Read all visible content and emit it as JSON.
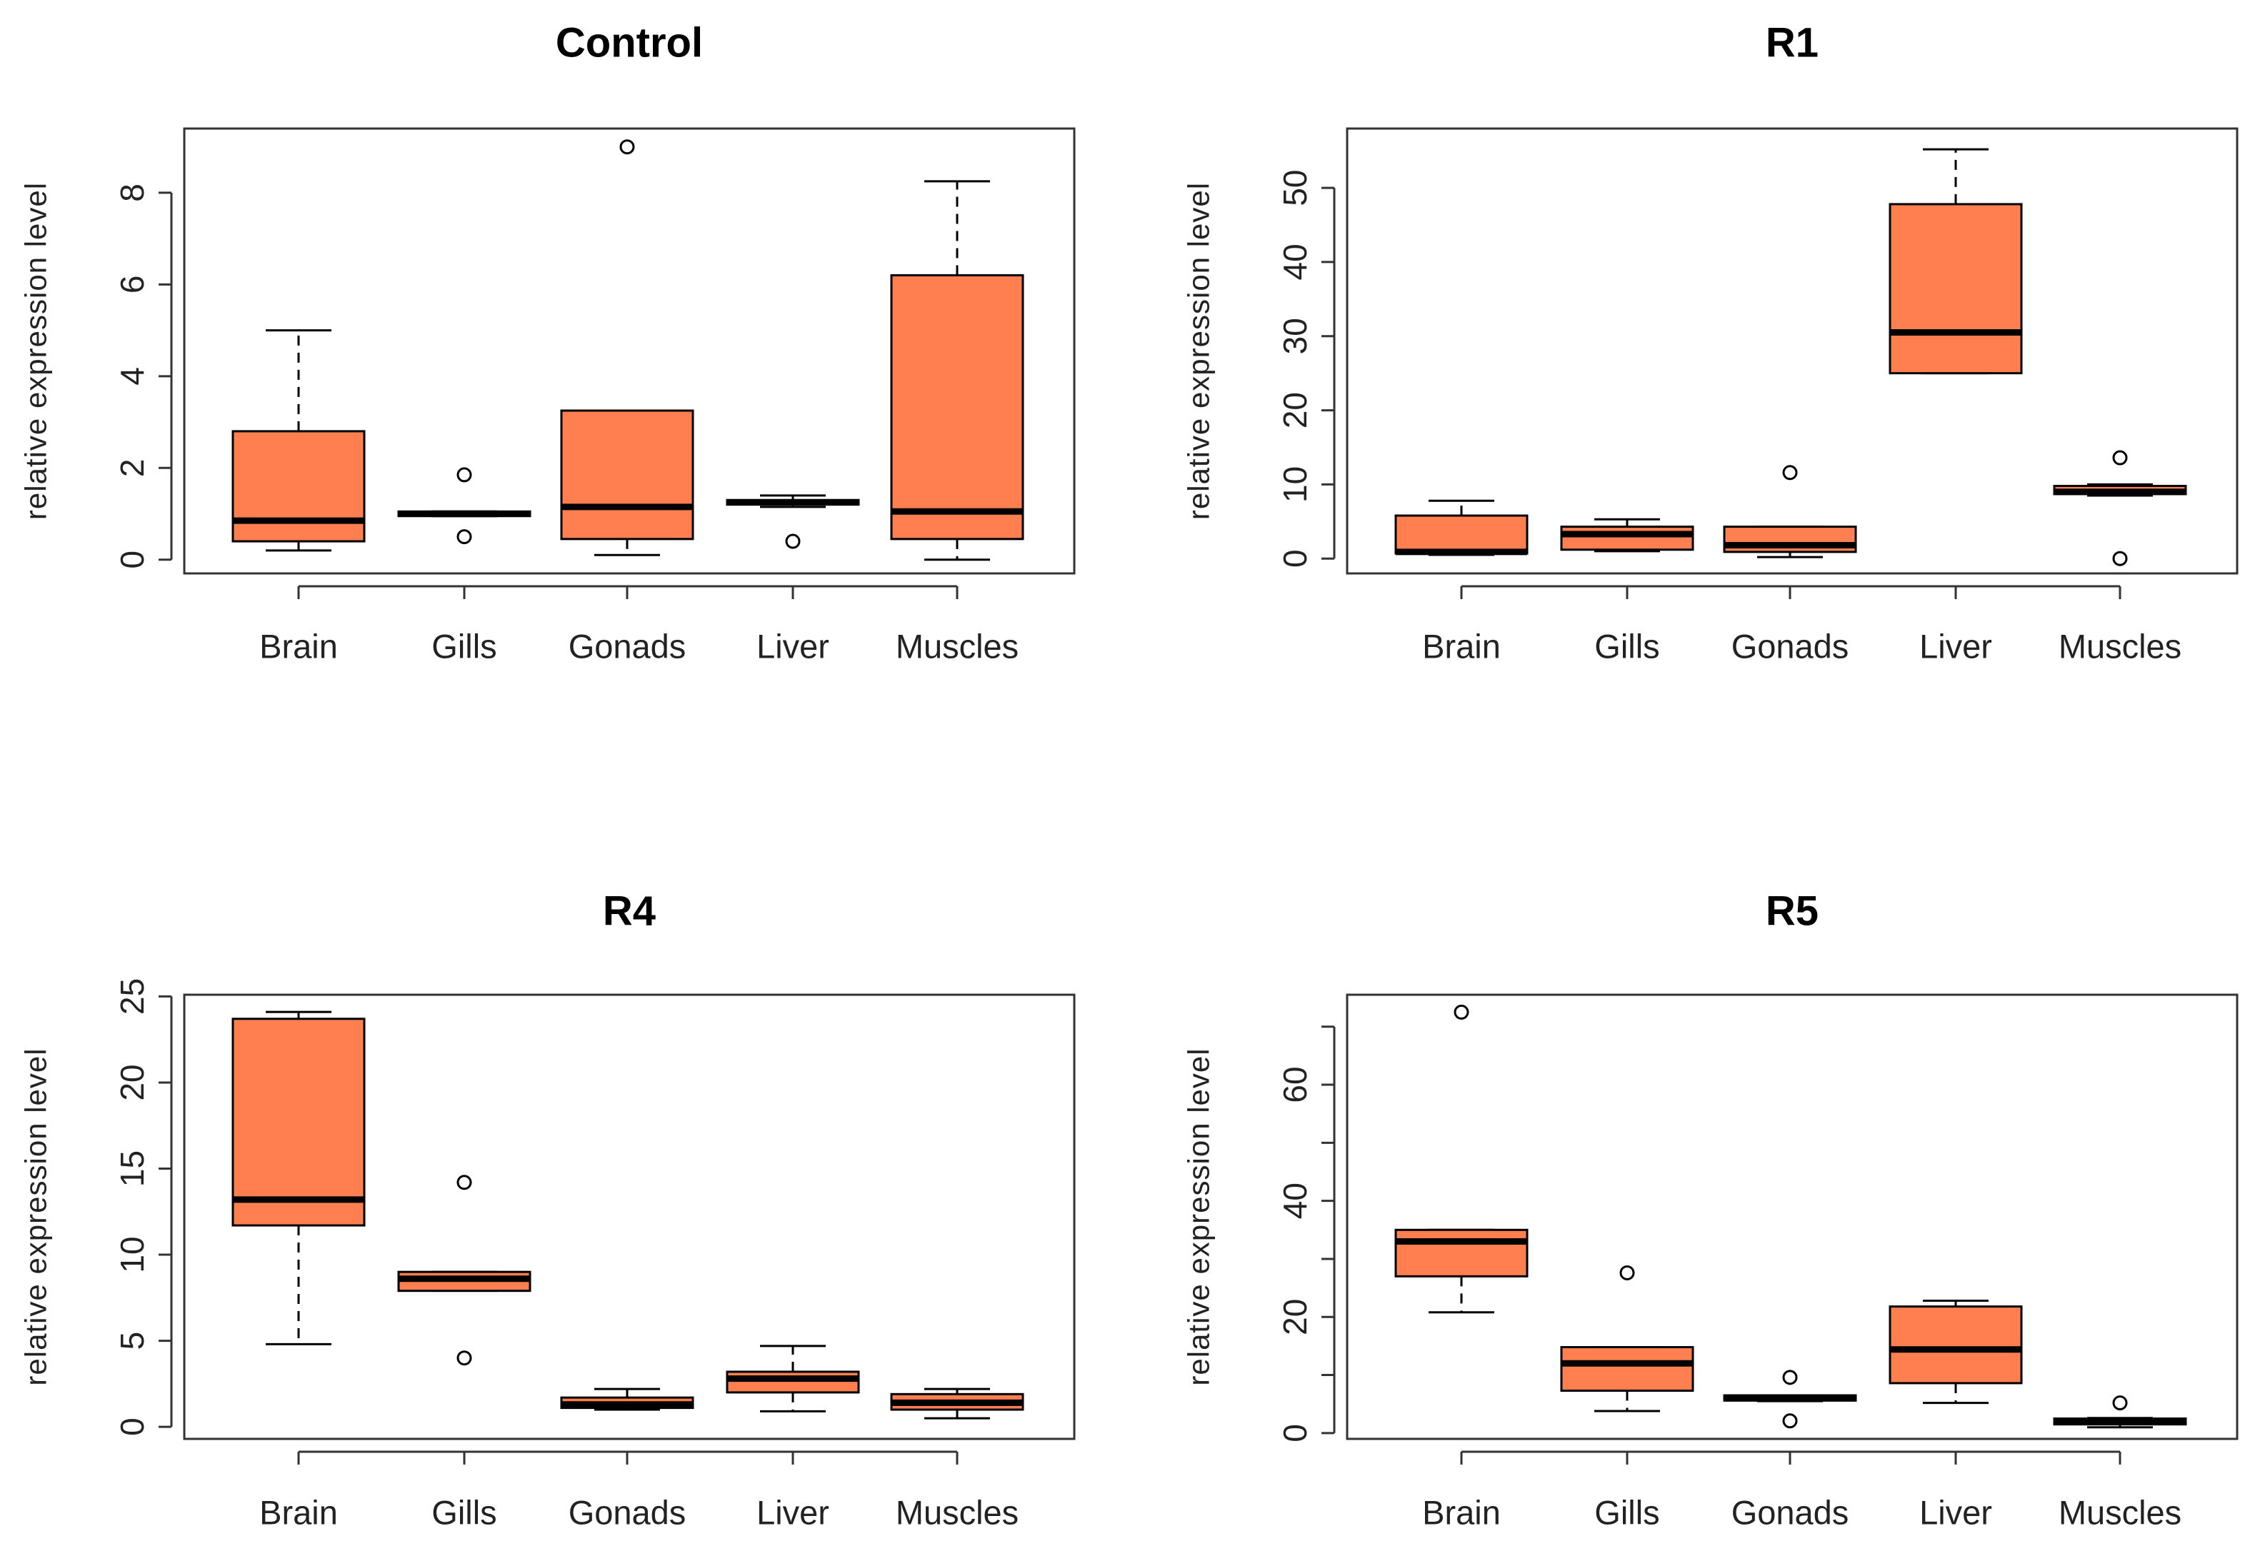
{
  "colors": {
    "box_fill": "#ff7f50",
    "stroke": "#000000",
    "frame": "#333333"
  },
  "chart_data": [
    {
      "type": "boxplot",
      "title": "Control",
      "ylabel": "relative expression level",
      "xlabel": "",
      "categories": [
        "Brain",
        "Gills",
        "Gonads",
        "Liver",
        "Muscles"
      ],
      "ylim": [
        -0.3,
        9.4
      ],
      "yticks": [
        0,
        2,
        4,
        6,
        8
      ],
      "boxes": [
        {
          "min": 0.2,
          "q1": 0.4,
          "median": 0.85,
          "q3": 2.8,
          "max": 5.0,
          "outliers": []
        },
        {
          "min": 0.95,
          "q1": 0.95,
          "median": 1.0,
          "q3": 1.05,
          "max": 1.05,
          "outliers": [
            1.85,
            0.5
          ]
        },
        {
          "min": 0.1,
          "q1": 0.45,
          "median": 1.15,
          "q3": 3.25,
          "max": 3.25,
          "outliers": [
            9.0
          ]
        },
        {
          "min": 1.15,
          "q1": 1.2,
          "median": 1.25,
          "q3": 1.3,
          "max": 1.4,
          "outliers": [
            0.4
          ]
        },
        {
          "min": 0.0,
          "q1": 0.45,
          "median": 1.05,
          "q3": 6.2,
          "max": 8.25,
          "outliers": []
        }
      ]
    },
    {
      "type": "boxplot",
      "title": "R1",
      "ylabel": "relative expression level",
      "xlabel": "",
      "categories": [
        "Brain",
        "Gills",
        "Gonads",
        "Liver",
        "Muscles"
      ],
      "ylim": [
        -2,
        58
      ],
      "yticks": [
        0,
        10,
        20,
        30,
        40,
        50
      ],
      "boxes": [
        {
          "min": 0.5,
          "q1": 0.7,
          "median": 0.9,
          "q3": 5.8,
          "max": 7.8,
          "outliers": []
        },
        {
          "min": 1.0,
          "q1": 1.2,
          "median": 3.3,
          "q3": 4.3,
          "max": 5.3,
          "outliers": []
        },
        {
          "min": 0.2,
          "q1": 0.9,
          "median": 1.8,
          "q3": 4.3,
          "max": 4.3,
          "outliers": [
            11.6
          ]
        },
        {
          "min": 25.0,
          "q1": 25.0,
          "median": 30.5,
          "q3": 47.8,
          "max": 55.2,
          "outliers": []
        },
        {
          "min": 8.5,
          "q1": 8.7,
          "median": 9.0,
          "q3": 9.8,
          "max": 10.0,
          "outliers": [
            13.6,
            0.0
          ]
        }
      ]
    },
    {
      "type": "boxplot",
      "title": "R4",
      "ylabel": "relative expression level",
      "xlabel": "",
      "categories": [
        "Brain",
        "Gills",
        "Gonads",
        "Liver",
        "Muscles"
      ],
      "ylim": [
        -0.7,
        25.1
      ],
      "yticks": [
        0,
        5,
        10,
        15,
        20,
        25
      ],
      "boxes": [
        {
          "min": 4.8,
          "q1": 11.7,
          "median": 13.2,
          "q3": 23.7,
          "max": 24.1,
          "outliers": []
        },
        {
          "min": 7.9,
          "q1": 7.9,
          "median": 8.6,
          "q3": 9.0,
          "max": 9.0,
          "outliers": [
            14.2,
            4.0
          ]
        },
        {
          "min": 1.0,
          "q1": 1.1,
          "median": 1.3,
          "q3": 1.7,
          "max": 2.2,
          "outliers": []
        },
        {
          "min": 0.9,
          "q1": 2.0,
          "median": 2.8,
          "q3": 3.2,
          "max": 4.7,
          "outliers": []
        },
        {
          "min": 0.5,
          "q1": 1.0,
          "median": 1.4,
          "q3": 1.9,
          "max": 2.2,
          "outliers": []
        }
      ]
    },
    {
      "type": "boxplot",
      "title": "R5",
      "ylabel": "relative expression level",
      "xlabel": "",
      "categories": [
        "Brain",
        "Gills",
        "Gonads",
        "Liver",
        "Muscles"
      ],
      "ylim": [
        -1,
        75.5
      ],
      "yticks": [
        0,
        20,
        40,
        60
      ],
      "minor_yticks": [
        10,
        30,
        50,
        70
      ],
      "boxes": [
        {
          "min": 20.8,
          "q1": 27.0,
          "median": 33.0,
          "q3": 35.0,
          "max": 35.0,
          "outliers": [
            72.5
          ]
        },
        {
          "min": 3.8,
          "q1": 7.3,
          "median": 12.0,
          "q3": 14.8,
          "max": 14.8,
          "outliers": [
            27.6
          ]
        },
        {
          "min": 5.5,
          "q1": 5.6,
          "median": 6.0,
          "q3": 6.5,
          "max": 6.5,
          "outliers": [
            9.6,
            2.1
          ]
        },
        {
          "min": 5.2,
          "q1": 8.6,
          "median": 14.4,
          "q3": 21.8,
          "max": 22.8,
          "outliers": []
        },
        {
          "min": 1.0,
          "q1": 1.5,
          "median": 2.0,
          "q3": 2.5,
          "max": 2.6,
          "outliers": [
            5.2
          ]
        }
      ]
    }
  ]
}
